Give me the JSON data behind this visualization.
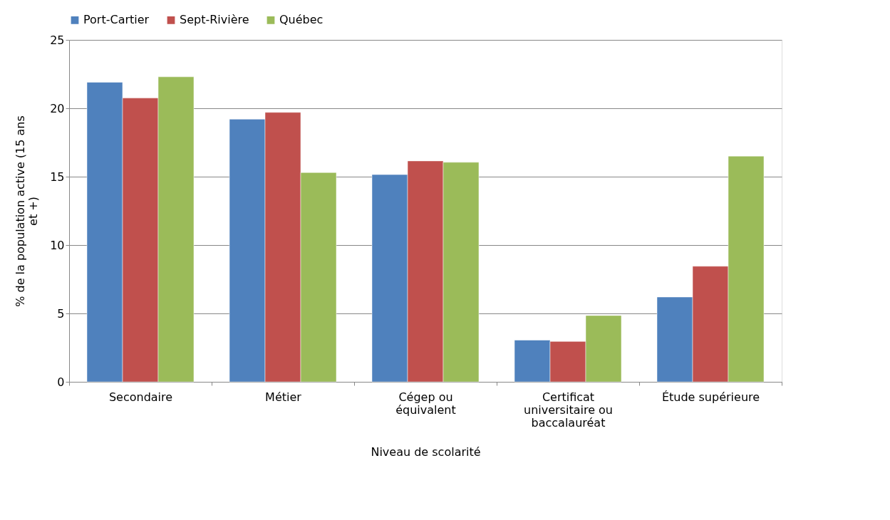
{
  "chart_data": {
    "type": "bar",
    "xlabel": "Niveau de scolarité",
    "ylabel": "% de la population active (15 ans et +)",
    "categories": [
      "Secondaire",
      "Métier",
      "Cégep ou équivalent",
      "Certificat universitaire ou baccalauréat",
      "Étude supérieure"
    ],
    "series": [
      {
        "name": "Port-Cartier",
        "color": "#4f81bd",
        "values": [
          21.9,
          19.2,
          15.15,
          3.05,
          6.2
        ]
      },
      {
        "name": "Sept-Rivière",
        "color": "#c0504d",
        "values": [
          20.75,
          19.7,
          16.15,
          2.95,
          8.45
        ]
      },
      {
        "name": "Québec",
        "color": "#9bbb59",
        "values": [
          22.3,
          15.3,
          16.05,
          4.85,
          16.5
        ]
      }
    ],
    "ylim": [
      0,
      25
    ],
    "yticks": [
      0,
      5,
      10,
      15,
      20,
      25
    ],
    "grid": "y",
    "legend": "top"
  }
}
